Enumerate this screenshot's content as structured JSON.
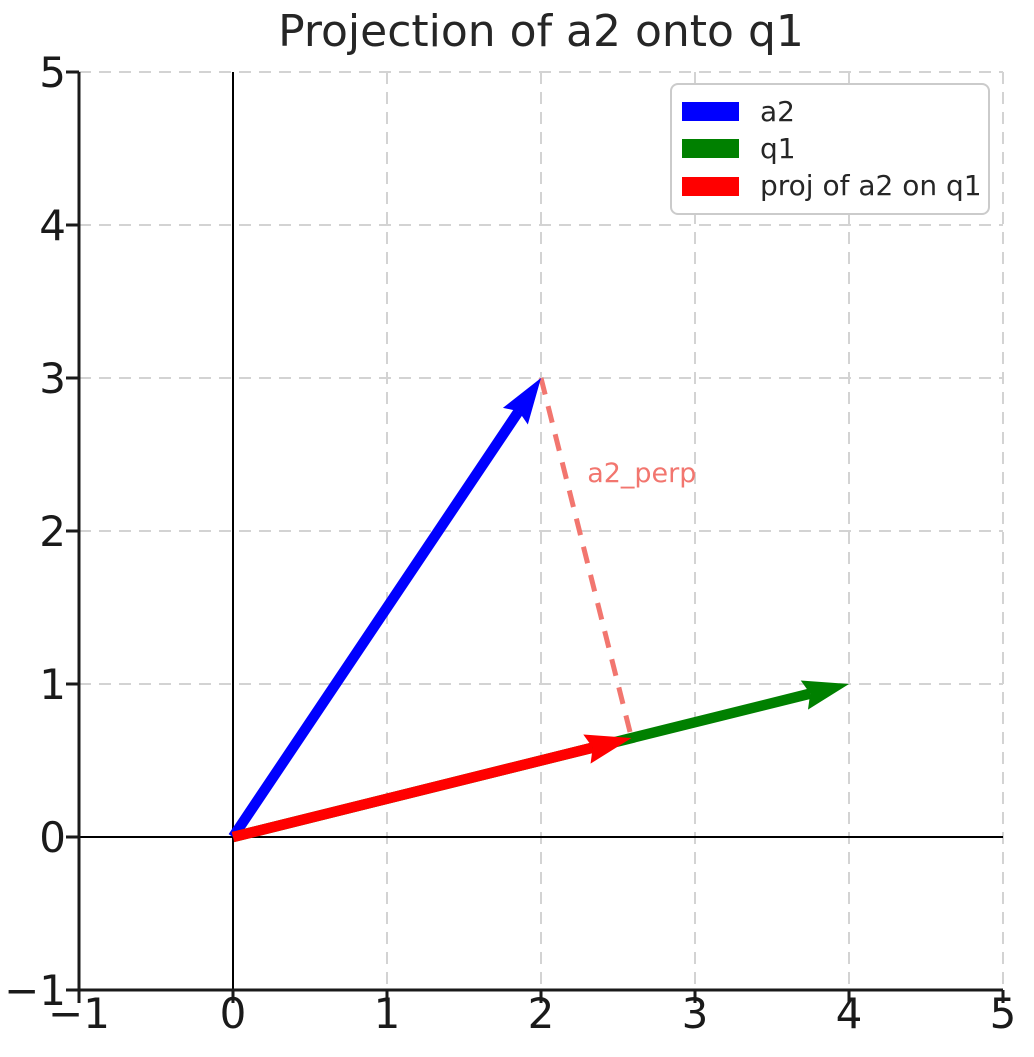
{
  "chart_data": {
    "type": "vector_plot",
    "title": "Projection of a2 onto q1",
    "title_color": "#262626",
    "xlim": [
      -1,
      5
    ],
    "ylim": [
      -1,
      5
    ],
    "xticks": [
      -1,
      0,
      1,
      2,
      3,
      4,
      5
    ],
    "yticks": [
      -1,
      0,
      1,
      2,
      3,
      4,
      5
    ],
    "tick_label_color": "#1a1a1a",
    "grid": {
      "visible": true,
      "linestyle": "dashed",
      "color": "#d3d3d3"
    },
    "spine_color": "#1a1a1a",
    "axis_lines": {
      "x_at": 0,
      "y_at": 0,
      "color": "#000000"
    },
    "vectors": [
      {
        "name": "a2",
        "from": [
          0,
          0
        ],
        "to": [
          2,
          3
        ],
        "color": "#0000ff"
      },
      {
        "name": "q1",
        "from": [
          0,
          0
        ],
        "to": [
          4,
          1
        ],
        "color": "#008000"
      },
      {
        "name": "proj of a2 on q1",
        "from": [
          0,
          0
        ],
        "to": [
          2.588,
          0.647
        ],
        "color": "#ff0000"
      }
    ],
    "perp_line": {
      "from": [
        2,
        3
      ],
      "to": [
        2.588,
        0.647
      ],
      "color": "#f2766f",
      "linestyle": "dashed"
    },
    "annotation": {
      "text": "a2_perp",
      "color": "#f2766f",
      "pos": [
        2.3,
        2.4
      ]
    },
    "legend": {
      "position": "upper right",
      "entries": [
        {
          "label": "a2",
          "color": "#0000ff"
        },
        {
          "label": "q1",
          "color": "#008000"
        },
        {
          "label": "proj of a2 on q1",
          "color": "#ff0000"
        }
      ]
    }
  }
}
